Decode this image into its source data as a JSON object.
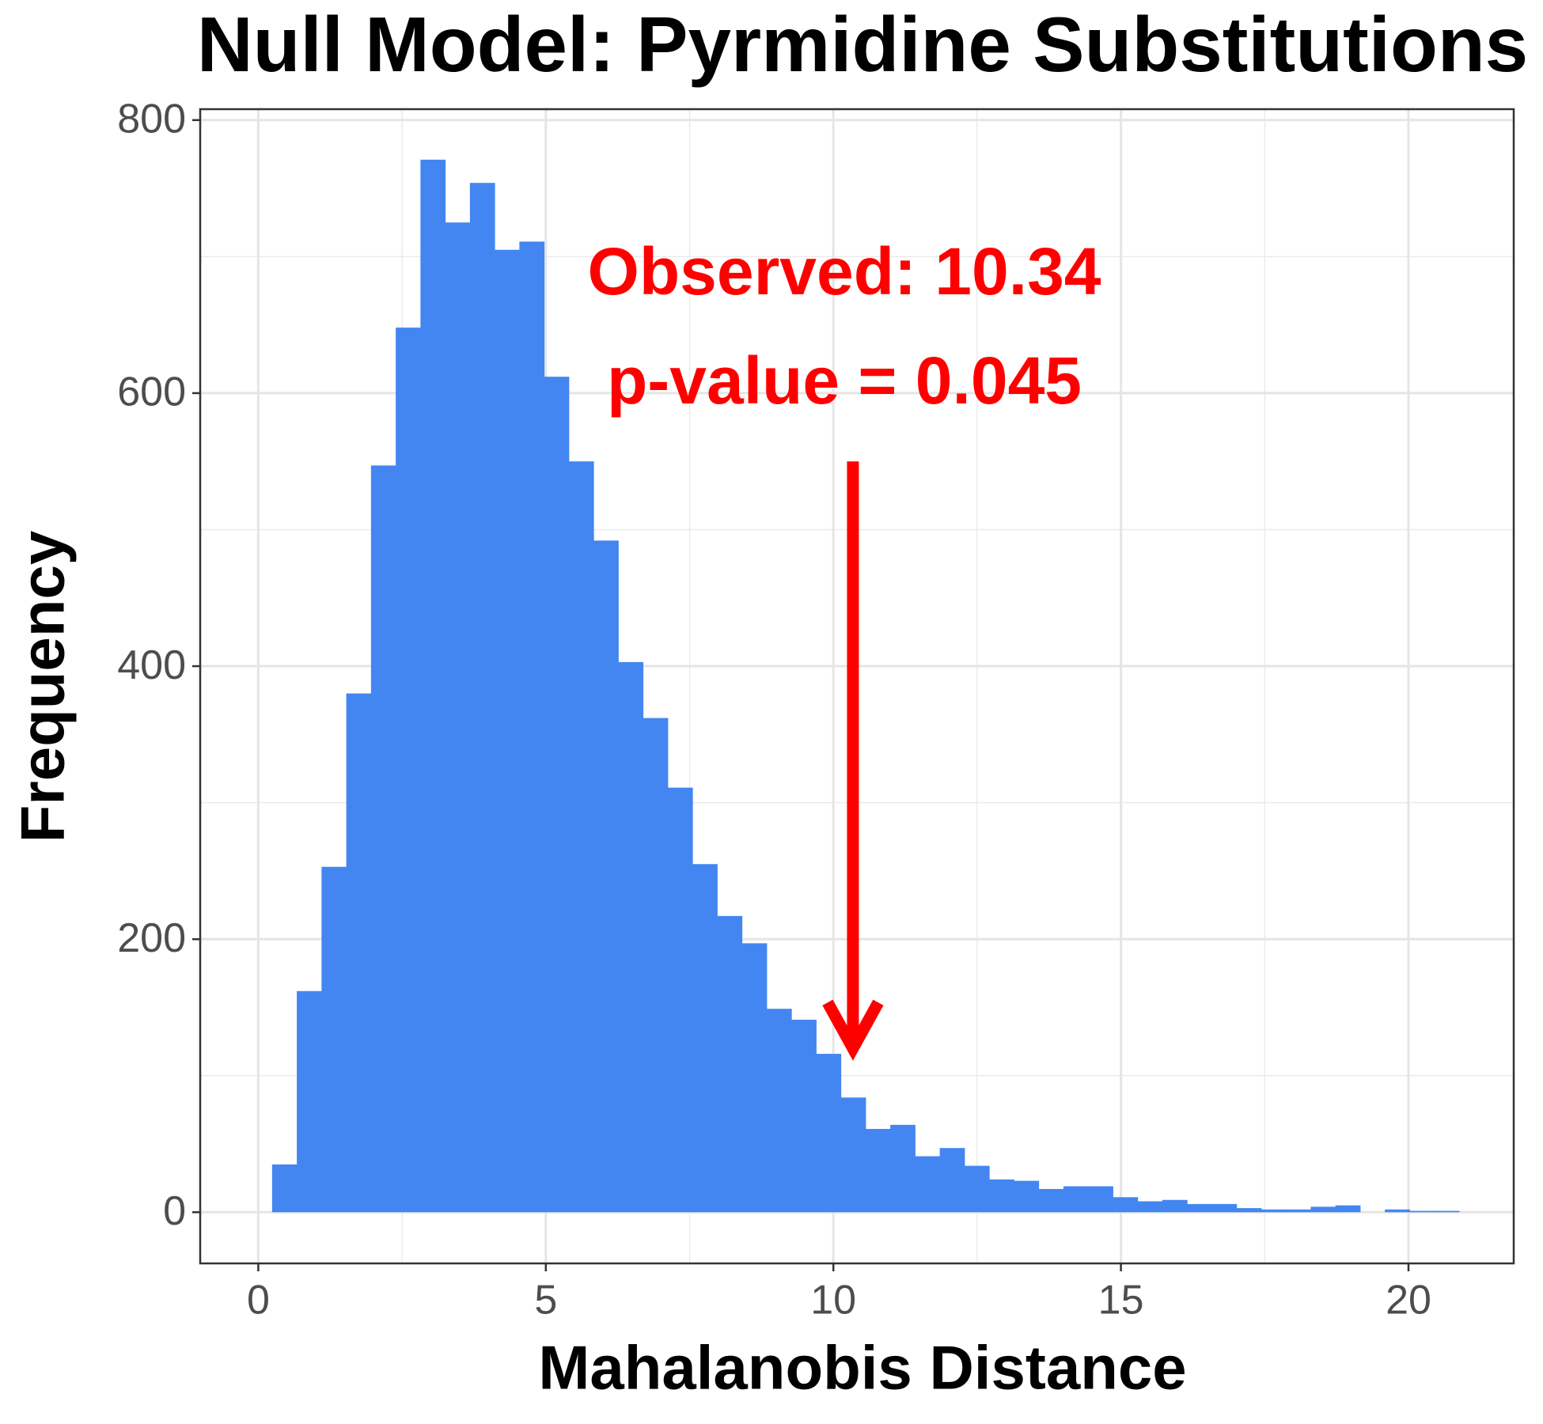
{
  "chart_data": {
    "type": "histogram",
    "title": "Null Model: Pyrmidine Substitutions",
    "x_label": "Mahalanobis Distance",
    "y_label": "Frequency",
    "color": "#4386f1",
    "bins": [
      0.24,
      0.67,
      1.1,
      1.53,
      1.96,
      2.39,
      2.82,
      3.25,
      3.68,
      4.11,
      4.54,
      4.97,
      5.4,
      5.83,
      6.26,
      6.69,
      7.12,
      7.55,
      7.98,
      8.41,
      8.84,
      9.27,
      9.7,
      10.13,
      10.56,
      10.99,
      11.42,
      11.85,
      12.28,
      12.71,
      13.14,
      13.57,
      14.0,
      14.43,
      14.86,
      15.29,
      15.72,
      16.15,
      16.58,
      17.01,
      17.44,
      17.87,
      18.3,
      18.73,
      19.16,
      19.59,
      20.02,
      20.45,
      20.88
    ],
    "values": [
      35,
      162,
      253,
      380,
      547,
      648,
      771,
      725,
      754,
      705,
      711,
      612,
      550,
      492,
      403,
      362,
      311,
      255,
      217,
      197,
      149,
      141,
      116,
      84,
      61,
      64,
      41,
      47,
      34,
      24,
      23,
      17,
      19,
      19,
      11,
      8,
      9,
      6,
      6,
      3,
      2,
      2,
      4,
      5,
      0,
      2,
      1,
      1
    ],
    "xlim": [
      -1.01,
      21.83
    ],
    "ylim": [
      -37.5,
      808
    ],
    "xticks": [
      0,
      5,
      10,
      15,
      20
    ],
    "yticks": [
      0,
      200,
      400,
      600,
      800
    ],
    "x_minor_ticks": [
      2.5,
      7.5,
      12.5,
      17.5
    ],
    "y_minor_ticks": [
      100,
      300,
      500,
      700
    ],
    "grid": true,
    "annotation": {
      "lines": [
        "Observed: 10.34",
        "p-value = 0.045"
      ],
      "color": "#ff0000",
      "arrow_x": 10.34,
      "arrow_y": [
        550,
        120
      ]
    }
  }
}
